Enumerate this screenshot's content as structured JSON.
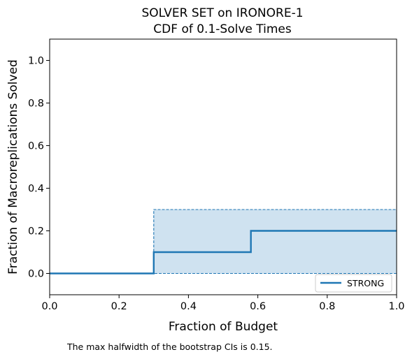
{
  "chart_data": {
    "type": "line",
    "drawstyle": "steps-post",
    "title": "SOLVER SET on IRONORE-1",
    "subtitle": "CDF of 0.1-Solve Times",
    "xlabel": "Fraction of Budget",
    "ylabel": "Fraction of Macroreplications Solved",
    "xlim": [
      0.0,
      1.0
    ],
    "ylim": [
      -0.1,
      1.1
    ],
    "xticks": [
      "0.0",
      "0.2",
      "0.4",
      "0.6",
      "0.8",
      "1.0"
    ],
    "yticks": [
      "0.0",
      "0.2",
      "0.4",
      "0.6",
      "0.8",
      "1.0"
    ],
    "grid": false,
    "legend_position": "lower-right",
    "series": [
      {
        "name": "STRONG",
        "color": "#1f77b4",
        "x": [
          0.0,
          0.3,
          0.58,
          1.0
        ],
        "y": [
          0.0,
          0.1,
          0.2,
          0.2
        ],
        "ci_upper": {
          "x": [
            0.0,
            0.3,
            1.0
          ],
          "y": [
            0.0,
            0.3,
            0.3
          ]
        },
        "ci_lower": {
          "x": [
            0.0,
            1.0
          ],
          "y": [
            0.0,
            0.0
          ]
        },
        "ci_fill_color": "#cfe2f0"
      }
    ],
    "annotation": "The max halfwidth of the bootstrap CIs is 0.15."
  }
}
